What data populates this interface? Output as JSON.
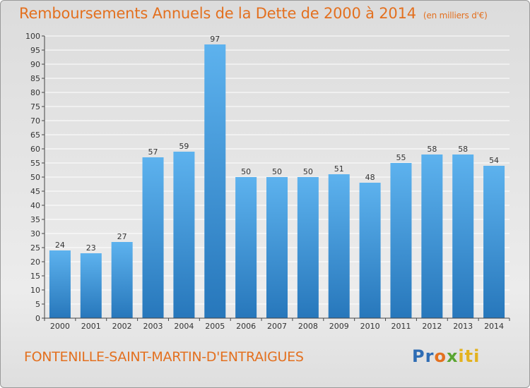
{
  "title": "Remboursements Annuels de la Dette de 2000 à 2014",
  "unit_label": "(en milliers d'€)",
  "location": "FONTENILLE-SAINT-MARTIN-D'ENTRAIGUES",
  "logo": {
    "text": "Proxiti",
    "colors": [
      "#2e6cb4",
      "#e3701f",
      "#5aa532",
      "#e3b21f"
    ]
  },
  "colors": {
    "title": "#e3701f",
    "bar_light": "#5aaeea",
    "bar_dark": "#2a7cc0",
    "grid": "#ffffff",
    "axis": "#444444"
  },
  "chart_data": {
    "type": "bar",
    "title": "Remboursements Annuels de la Dette de 2000 à 2014",
    "xlabel": "",
    "ylabel": "",
    "ylim": [
      0,
      100
    ],
    "ytick_step": 5,
    "grid": true,
    "categories": [
      "2000",
      "2001",
      "2002",
      "2003",
      "2004",
      "2005",
      "2006",
      "2007",
      "2008",
      "2009",
      "2010",
      "2011",
      "2012",
      "2013",
      "2014"
    ],
    "values": [
      24,
      23,
      27,
      57,
      59,
      97,
      50,
      50,
      50,
      51,
      48,
      55,
      58,
      58,
      54
    ],
    "data_labels": [
      "24",
      "23",
      "27",
      "57",
      "59",
      "97",
      "50",
      "50",
      "50",
      "51",
      "48",
      "55",
      "58",
      "58",
      "54"
    ]
  }
}
